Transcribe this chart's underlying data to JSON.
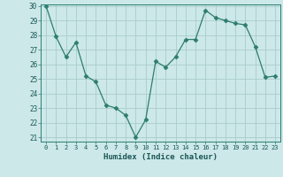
{
  "x": [
    0,
    1,
    2,
    3,
    4,
    5,
    6,
    7,
    8,
    9,
    10,
    11,
    12,
    13,
    14,
    15,
    16,
    17,
    18,
    19,
    20,
    21,
    22,
    23
  ],
  "y": [
    30.0,
    27.9,
    26.5,
    27.5,
    25.2,
    24.8,
    23.2,
    23.0,
    22.5,
    21.0,
    22.2,
    26.2,
    25.8,
    26.5,
    27.7,
    27.7,
    29.7,
    29.2,
    29.0,
    28.8,
    28.7,
    27.2,
    25.1,
    25.2
  ],
  "ylim": [
    21,
    30
  ],
  "yticks": [
    21,
    22,
    23,
    24,
    25,
    26,
    27,
    28,
    29,
    30
  ],
  "xticks": [
    0,
    1,
    2,
    3,
    4,
    5,
    6,
    7,
    8,
    9,
    10,
    11,
    12,
    13,
    14,
    15,
    16,
    17,
    18,
    19,
    20,
    21,
    22,
    23
  ],
  "xlabel": "Humidex (Indice chaleur)",
  "line_color": "#2d7d6f",
  "marker": "D",
  "marker_size": 2.5,
  "bg_color": "#cce8e8",
  "grid_color": "#aacccc",
  "axis_color": "#2d7d6f",
  "label_color": "#1a5555"
}
